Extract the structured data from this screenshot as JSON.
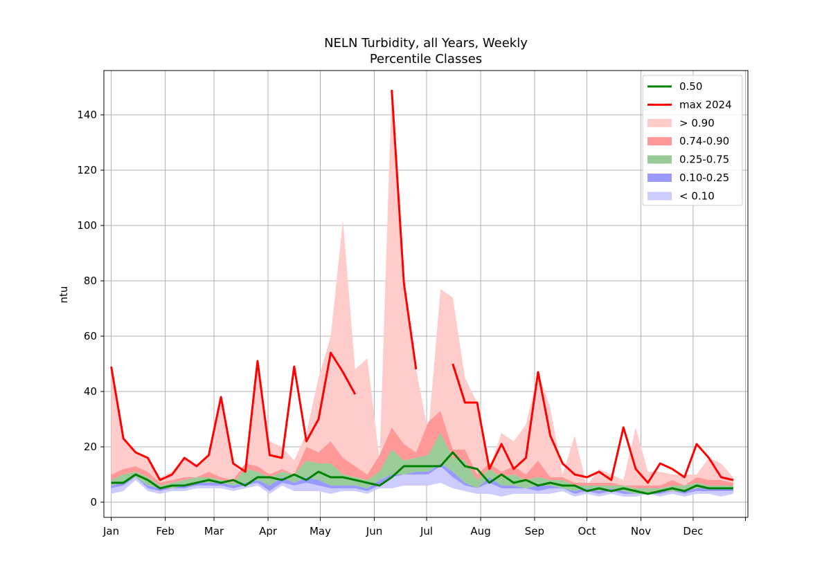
{
  "chart_data": {
    "type": "area",
    "title": "NELN Turbidity, all Years, Weekly",
    "subtitle": "Percentile Classes",
    "xlabel": "",
    "ylabel": "ntu",
    "xlim": [
      -0.6,
      52.2
    ],
    "ylim": [
      -5.5,
      156
    ],
    "grid": true,
    "legend_position": "top-right",
    "x_ticks": [
      {
        "x": 0,
        "label": "Jan"
      },
      {
        "x": 4.43,
        "label": "Feb"
      },
      {
        "x": 8.43,
        "label": "Mar"
      },
      {
        "x": 12.86,
        "label": "Apr"
      },
      {
        "x": 17.14,
        "label": "May"
      },
      {
        "x": 21.57,
        "label": "Jun"
      },
      {
        "x": 25.86,
        "label": "Jul"
      },
      {
        "x": 30.29,
        "label": "Aug"
      },
      {
        "x": 34.71,
        "label": "Sep"
      },
      {
        "x": 39.0,
        "label": "Oct"
      },
      {
        "x": 43.43,
        "label": "Nov"
      },
      {
        "x": 47.71,
        "label": "Dec"
      },
      {
        "x": 52.0,
        "label": ""
      }
    ],
    "y_ticks": [
      0,
      20,
      40,
      60,
      80,
      100,
      120,
      140
    ],
    "weeks": [
      0,
      1,
      2,
      3,
      4,
      5,
      6,
      7,
      8,
      9,
      10,
      11,
      12,
      13,
      14,
      15,
      16,
      17,
      18,
      19,
      20,
      21,
      22,
      23,
      24,
      25,
      26,
      27,
      28,
      29,
      30,
      31,
      32,
      33,
      34,
      35,
      36,
      37,
      38,
      39,
      40,
      41,
      42,
      43,
      44,
      45,
      46,
      47,
      48,
      49,
      50,
      51
    ],
    "bands": {
      "min": [
        3,
        4,
        8,
        4,
        3,
        4,
        4,
        5,
        5,
        5,
        4,
        5,
        6,
        3,
        6,
        4,
        4,
        4,
        3,
        4,
        4,
        3,
        5,
        5,
        6,
        6,
        6,
        7,
        5,
        4,
        3,
        3,
        2,
        3,
        3,
        3,
        3,
        4,
        2,
        3,
        2,
        3,
        2,
        2,
        3,
        2,
        3,
        2,
        3,
        3,
        2,
        3
      ],
      "p10": [
        5,
        6,
        9,
        5,
        4,
        5,
        5,
        6,
        6,
        6,
        5,
        6,
        7,
        4,
        7,
        6,
        7,
        6,
        5,
        5,
        5,
        4,
        6,
        9,
        10,
        10,
        10,
        13,
        9,
        6,
        5,
        7,
        5,
        5,
        5,
        4,
        5,
        5,
        3,
        4,
        3,
        4,
        3,
        3,
        3,
        3,
        4,
        3,
        4,
        4,
        4,
        4
      ],
      "p25": [
        6,
        7,
        9,
        6,
        5,
        5,
        6,
        7,
        7,
        7,
        6,
        7,
        8,
        6,
        9,
        7,
        9,
        8,
        6,
        6,
        6,
        5,
        8,
        10,
        10,
        11,
        11,
        14,
        11,
        7,
        5,
        9,
        6,
        6,
        5,
        6,
        6,
        5,
        4,
        5,
        4,
        5,
        4,
        3,
        3,
        4,
        4,
        4,
        5,
        5,
        5,
        5
      ],
      "p75": [
        8,
        10,
        11,
        9,
        6,
        7,
        8,
        9,
        9,
        8,
        7,
        12,
        11,
        9,
        11,
        10,
        15,
        14,
        14,
        10,
        9,
        8,
        11,
        19,
        15,
        16,
        17,
        25,
        16,
        15,
        8,
        12,
        9,
        10,
        8,
        9,
        8,
        8,
        6,
        6,
        6,
        6,
        6,
        5,
        5,
        5,
        6,
        6,
        7,
        6,
        6,
        6
      ],
      "p90": [
        10,
        12,
        13,
        11,
        7,
        8,
        9,
        9,
        11,
        9,
        8,
        14,
        13,
        10,
        12,
        10,
        20,
        18,
        22,
        16,
        13,
        10,
        17,
        27,
        21,
        18,
        29,
        33,
        19,
        19,
        10,
        14,
        11,
        13,
        10,
        15,
        9,
        9,
        7,
        7,
        7,
        7,
        6,
        6,
        6,
        6,
        8,
        6,
        9,
        8,
        8,
        7
      ],
      "max": [
        49,
        23,
        18,
        16,
        9,
        11,
        16,
        13,
        17,
        38,
        14,
        9,
        50,
        22,
        20,
        15,
        25,
        45,
        60,
        102,
        48,
        52,
        15,
        150,
        80,
        48,
        25,
        77,
        74,
        45,
        36,
        12,
        25,
        22,
        28,
        47,
        34,
        10,
        24,
        6,
        12,
        10,
        8,
        27,
        11,
        11,
        10,
        10,
        10,
        16,
        14,
        9
      ]
    },
    "series": [
      {
        "name": "0.50",
        "color": "#008000",
        "values": [
          7,
          7,
          10,
          8,
          5,
          6,
          6,
          7,
          8,
          7,
          8,
          6,
          9,
          9,
          8,
          10,
          8,
          11,
          9,
          9,
          8,
          7,
          6,
          9,
          13,
          13,
          13,
          13,
          18,
          13,
          12,
          7,
          10,
          7,
          8,
          6,
          7,
          6,
          6,
          4,
          5,
          4,
          5,
          4,
          3,
          4,
          5,
          4,
          6,
          5,
          5,
          5
        ]
      },
      {
        "name": "max 2024",
        "color": "#ff0000",
        "values": [
          49,
          23,
          18,
          16,
          8,
          10,
          16,
          13,
          17,
          38,
          14,
          11,
          51,
          17,
          16,
          49,
          22,
          30,
          54,
          47,
          39,
          null,
          null,
          149,
          79,
          48,
          null,
          null,
          50,
          36,
          36,
          12,
          21,
          12,
          16,
          47,
          24,
          14,
          10,
          9,
          11,
          8,
          27,
          12,
          7,
          14,
          12,
          9,
          21,
          16,
          9,
          8
        ]
      }
    ],
    "band_series": [
      {
        "name": "> 0.90",
        "color": "#ffcccc"
      },
      {
        "name": "0.74-0.90",
        "color": "#ff9999"
      },
      {
        "name": "0.25-0.75",
        "color": "#99cc99"
      },
      {
        "name": "0.10-0.25",
        "color": "#9999ff"
      },
      {
        "name": "< 0.10",
        "color": "#ccccff"
      }
    ]
  }
}
